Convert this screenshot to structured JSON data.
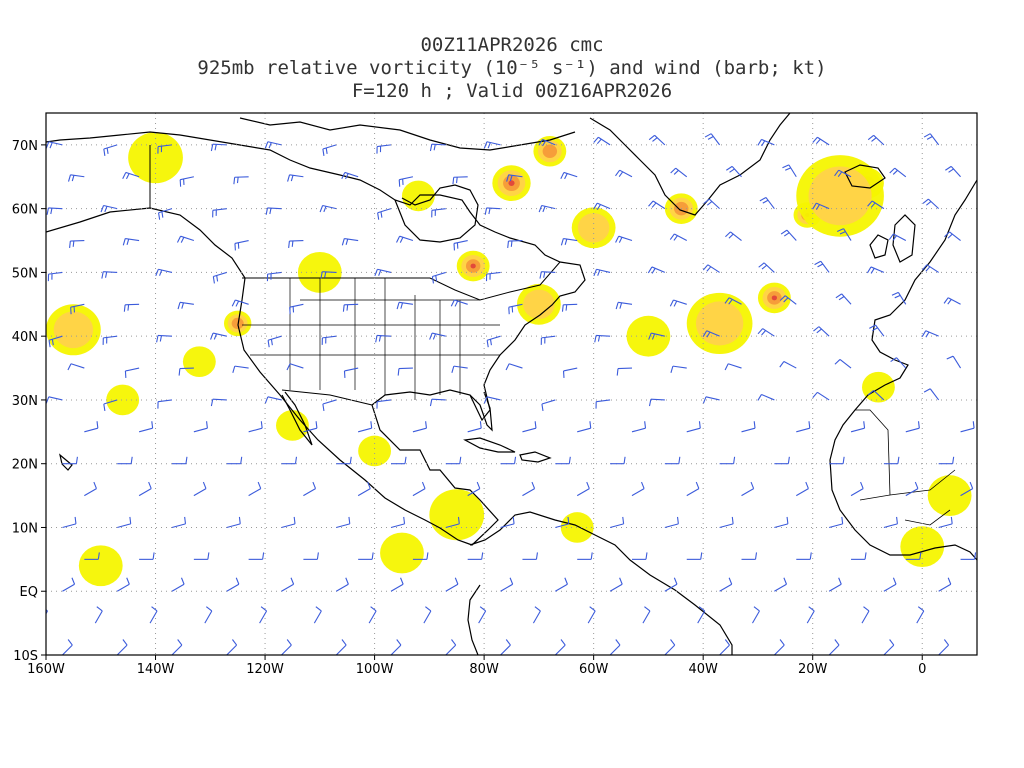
{
  "title": {
    "line1": "00Z11APR2026 cmc",
    "line2": "925mb relative vorticity (10⁻⁵ s⁻¹) and wind (barb; kt)",
    "line3": "F=120 h ; Valid 00Z16APR2026"
  },
  "axes": {
    "lon_labels": [
      "160W",
      "140W",
      "120W",
      "100W",
      "80W",
      "60W",
      "40W",
      "20W",
      "0"
    ],
    "lon_values": [
      -160,
      -140,
      -120,
      -100,
      -80,
      -60,
      -40,
      -20,
      0
    ],
    "lat_labels": [
      "70N",
      "60N",
      "50N",
      "40N",
      "30N",
      "20N",
      "10N",
      "EQ",
      "10S"
    ],
    "lat_values": [
      70,
      60,
      50,
      40,
      30,
      20,
      10,
      0,
      -10
    ],
    "lon_range": [
      -160,
      10
    ],
    "lat_range": [
      -10,
      75
    ]
  },
  "colors": {
    "shade_light": "#f5f500",
    "shade_mid": "#ffd24a",
    "shade_high": "#f59a3a",
    "shade_max": "#e0443a",
    "coast": "#000000",
    "barb": "#3b5bdb",
    "grid": "#9a9a9a"
  },
  "vorticity_regions": [
    {
      "lon": -75,
      "lat": 64,
      "r": 3.5,
      "level": 4
    },
    {
      "lon": -82,
      "lat": 51,
      "r": 3,
      "level": 4
    },
    {
      "lon": -27,
      "lat": 46,
      "r": 3,
      "level": 4
    },
    {
      "lon": -21,
      "lat": 59,
      "r": 2.5,
      "level": 4
    },
    {
      "lon": -10,
      "lat": 64,
      "r": 3,
      "level": 3
    },
    {
      "lon": -68,
      "lat": 69,
      "r": 3,
      "level": 3
    },
    {
      "lon": -44,
      "lat": 60,
      "r": 3,
      "level": 3
    },
    {
      "lon": -125,
      "lat": 42,
      "r": 2.5,
      "level": 3
    },
    {
      "lon": -37,
      "lat": 42,
      "r": 6,
      "level": 2
    },
    {
      "lon": -50,
      "lat": 40,
      "r": 4,
      "level": 1
    },
    {
      "lon": -15,
      "lat": 62,
      "r": 8,
      "level": 2
    },
    {
      "lon": -155,
      "lat": 41,
      "r": 5,
      "level": 2
    },
    {
      "lon": -140,
      "lat": 68,
      "r": 5,
      "level": 1
    },
    {
      "lon": -110,
      "lat": 50,
      "r": 4,
      "level": 1
    },
    {
      "lon": -70,
      "lat": 45,
      "r": 4,
      "level": 2
    },
    {
      "lon": -85,
      "lat": 12,
      "r": 5,
      "level": 1
    },
    {
      "lon": -95,
      "lat": 6,
      "r": 4,
      "level": 1
    },
    {
      "lon": -150,
      "lat": 4,
      "r": 4,
      "level": 1
    },
    {
      "lon": -115,
      "lat": 26,
      "r": 3,
      "level": 1
    },
    {
      "lon": -100,
      "lat": 22,
      "r": 3,
      "level": 1
    },
    {
      "lon": 5,
      "lat": 15,
      "r": 4,
      "level": 1
    },
    {
      "lon": 0,
      "lat": 7,
      "r": 4,
      "level": 1
    },
    {
      "lon": -8,
      "lat": 32,
      "r": 3,
      "level": 1
    },
    {
      "lon": -132,
      "lat": 36,
      "r": 3,
      "level": 1
    },
    {
      "lon": -146,
      "lat": 30,
      "r": 3,
      "level": 1
    },
    {
      "lon": -60,
      "lat": 57,
      "r": 4,
      "level": 2
    },
    {
      "lon": -92,
      "lat": 62,
      "r": 3,
      "level": 1
    },
    {
      "lon": -63,
      "lat": 10,
      "r": 3,
      "level": 1
    }
  ]
}
